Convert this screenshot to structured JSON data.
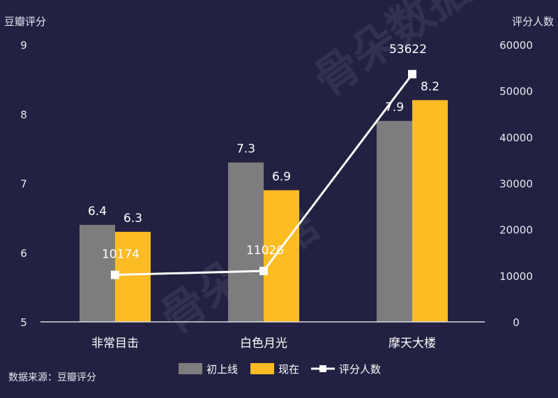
{
  "source_note": "数据来源：豆瓣评分",
  "watermark": "骨朵数据",
  "colors": {
    "background": "#232142",
    "initial": "#7d7d7d",
    "current": "#fbbc24",
    "count_line": "#ffffff",
    "axis": "#d8d8e0"
  },
  "chart_data": {
    "type": "bar",
    "categories": [
      "非常目击",
      "白色月光",
      "摩天大楼"
    ],
    "series": [
      {
        "name": "初上线",
        "values": [
          6.4,
          7.3,
          7.9
        ],
        "axis": "left",
        "kind": "bar"
      },
      {
        "name": "现在",
        "values": [
          6.3,
          6.9,
          8.2
        ],
        "axis": "left",
        "kind": "bar"
      },
      {
        "name": "评分人数",
        "values": [
          10174,
          11026,
          53622
        ],
        "axis": "right",
        "kind": "line"
      }
    ],
    "ylabel": "豆瓣评分",
    "ylim": [
      5,
      9
    ],
    "yticks": [
      "5",
      "6",
      "7",
      "8",
      "9"
    ],
    "y2label": "评分人数",
    "y2lim": [
      0,
      60000
    ],
    "y2ticks": [
      "0",
      "10000",
      "20000",
      "30000",
      "40000",
      "50000",
      "60000"
    ],
    "grid": false,
    "legend_position": "bottom"
  }
}
